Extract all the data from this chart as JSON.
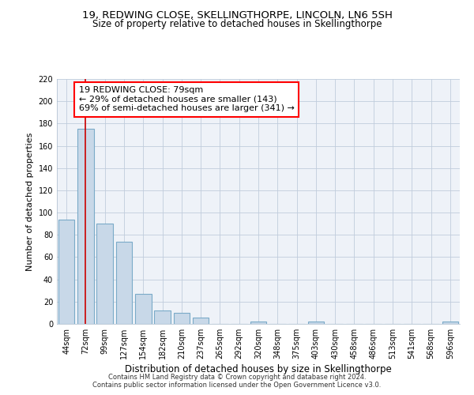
{
  "title": "19, REDWING CLOSE, SKELLINGTHORPE, LINCOLN, LN6 5SH",
  "subtitle": "Size of property relative to detached houses in Skellingthorpe",
  "xlabel": "Distribution of detached houses by size in Skellingthorpe",
  "ylabel": "Number of detached properties",
  "bar_labels": [
    "44sqm",
    "72sqm",
    "99sqm",
    "127sqm",
    "154sqm",
    "182sqm",
    "210sqm",
    "237sqm",
    "265sqm",
    "292sqm",
    "320sqm",
    "348sqm",
    "375sqm",
    "403sqm",
    "430sqm",
    "458sqm",
    "486sqm",
    "513sqm",
    "541sqm",
    "568sqm",
    "596sqm"
  ],
  "bar_values": [
    94,
    175,
    90,
    74,
    27,
    12,
    10,
    6,
    0,
    0,
    2,
    0,
    0,
    2,
    0,
    0,
    0,
    0,
    0,
    0,
    2
  ],
  "bar_color": "#c8d8e8",
  "bar_edgecolor": "#7aaac8",
  "bar_linewidth": 0.8,
  "vline_x": 1,
  "vline_color": "#cc0000",
  "vline_linewidth": 1.2,
  "annotation_line1": "19 REDWING CLOSE: 79sqm",
  "annotation_line2": "← 29% of detached houses are smaller (143)",
  "annotation_line3": "69% of semi-detached houses are larger (341) →",
  "ylim": [
    0,
    220
  ],
  "yticks": [
    0,
    20,
    40,
    60,
    80,
    100,
    120,
    140,
    160,
    180,
    200,
    220
  ],
  "grid_color": "#c0ccdc",
  "background_color": "#eef2f8",
  "footer_line1": "Contains HM Land Registry data © Crown copyright and database right 2024.",
  "footer_line2": "Contains public sector information licensed under the Open Government Licence v3.0.",
  "title_fontsize": 9.5,
  "subtitle_fontsize": 8.5,
  "xlabel_fontsize": 8.5,
  "ylabel_fontsize": 8,
  "tick_fontsize": 7,
  "footer_fontsize": 6,
  "annotation_fontsize": 8
}
